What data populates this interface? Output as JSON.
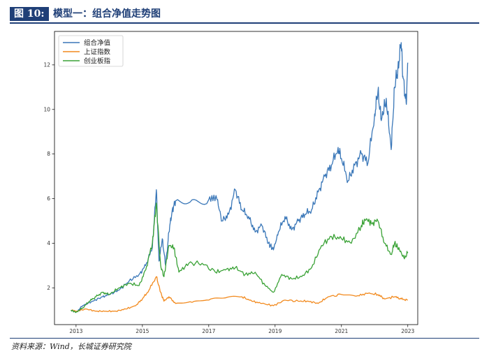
{
  "header": {
    "figure_label": "图 10:",
    "title": "模型一：组合净值走势图"
  },
  "footer": {
    "source": "资料来源：Wind，长城证券研究院"
  },
  "colors": {
    "brand": "#1f3f77",
    "series_portfolio": "#3a77b8",
    "series_shanghai": "#f28a1e",
    "series_chinext": "#3aa236"
  },
  "chart_data": {
    "type": "line",
    "title": "",
    "xlabel": "",
    "ylabel": "",
    "xlim": [
      2012.35,
      2023.3
    ],
    "ylim": [
      0.35,
      13.5
    ],
    "xticks": [
      2013,
      2015,
      2017,
      2019,
      2021,
      2023
    ],
    "yticks": [
      2,
      4,
      6,
      8,
      10,
      12
    ],
    "legend_position": "top-left",
    "grid": false,
    "series": [
      {
        "name": "组合净值",
        "color": "#3a77b8",
        "points": [
          [
            2012.85,
            1.0
          ],
          [
            2013.0,
            0.9
          ],
          [
            2013.2,
            1.2
          ],
          [
            2013.5,
            1.4
          ],
          [
            2013.8,
            1.6
          ],
          [
            2014.0,
            1.7
          ],
          [
            2014.3,
            1.9
          ],
          [
            2014.6,
            2.3
          ],
          [
            2014.9,
            2.6
          ],
          [
            2015.1,
            3.0
          ],
          [
            2015.3,
            3.8
          ],
          [
            2015.42,
            6.4
          ],
          [
            2015.5,
            3.2
          ],
          [
            2015.6,
            4.2
          ],
          [
            2015.7,
            3.0
          ],
          [
            2015.8,
            4.5
          ],
          [
            2015.9,
            5.5
          ],
          [
            2016.0,
            5.9
          ],
          [
            2016.5,
            5.95
          ],
          [
            2017.0,
            5.95
          ],
          [
            2017.25,
            5.95
          ],
          [
            2017.4,
            5.0
          ],
          [
            2017.6,
            5.3
          ],
          [
            2017.8,
            6.4
          ],
          [
            2018.0,
            5.5
          ],
          [
            2018.2,
            5.2
          ],
          [
            2018.4,
            4.5
          ],
          [
            2018.6,
            4.8
          ],
          [
            2018.8,
            4.0
          ],
          [
            2018.95,
            3.7
          ],
          [
            2019.1,
            4.5
          ],
          [
            2019.3,
            5.2
          ],
          [
            2019.5,
            4.6
          ],
          [
            2019.7,
            5.0
          ],
          [
            2019.9,
            5.3
          ],
          [
            2020.1,
            5.5
          ],
          [
            2020.3,
            6.3
          ],
          [
            2020.5,
            7.0
          ],
          [
            2020.7,
            7.5
          ],
          [
            2020.9,
            8.3
          ],
          [
            2021.0,
            7.8
          ],
          [
            2021.2,
            6.8
          ],
          [
            2021.4,
            7.5
          ],
          [
            2021.6,
            8.0
          ],
          [
            2021.8,
            7.6
          ],
          [
            2022.0,
            9.8
          ],
          [
            2022.1,
            10.8
          ],
          [
            2022.2,
            9.5
          ],
          [
            2022.35,
            10.5
          ],
          [
            2022.5,
            8.2
          ],
          [
            2022.6,
            11.0
          ],
          [
            2022.7,
            11.8
          ],
          [
            2022.8,
            13.0
          ],
          [
            2022.85,
            11.5
          ],
          [
            2022.95,
            10.3
          ],
          [
            2023.0,
            12.1
          ]
        ]
      },
      {
        "name": "上证指数",
        "color": "#f28a1e",
        "points": [
          [
            2012.85,
            1.0
          ],
          [
            2013.0,
            0.95
          ],
          [
            2013.3,
            1.05
          ],
          [
            2013.6,
            0.95
          ],
          [
            2013.9,
            0.95
          ],
          [
            2014.2,
            0.95
          ],
          [
            2014.5,
            1.05
          ],
          [
            2014.8,
            1.2
          ],
          [
            2015.0,
            1.5
          ],
          [
            2015.2,
            1.9
          ],
          [
            2015.42,
            2.5
          ],
          [
            2015.55,
            1.8
          ],
          [
            2015.65,
            1.4
          ],
          [
            2015.8,
            1.6
          ],
          [
            2016.0,
            1.3
          ],
          [
            2016.5,
            1.35
          ],
          [
            2017.0,
            1.45
          ],
          [
            2017.5,
            1.55
          ],
          [
            2018.0,
            1.6
          ],
          [
            2018.3,
            1.4
          ],
          [
            2018.6,
            1.3
          ],
          [
            2018.95,
            1.2
          ],
          [
            2019.3,
            1.45
          ],
          [
            2019.7,
            1.4
          ],
          [
            2020.0,
            1.4
          ],
          [
            2020.3,
            1.3
          ],
          [
            2020.6,
            1.6
          ],
          [
            2021.0,
            1.7
          ],
          [
            2021.5,
            1.65
          ],
          [
            2021.8,
            1.75
          ],
          [
            2022.1,
            1.7
          ],
          [
            2022.3,
            1.5
          ],
          [
            2022.6,
            1.6
          ],
          [
            2022.8,
            1.5
          ],
          [
            2023.0,
            1.45
          ]
        ]
      },
      {
        "name": "创业板指",
        "color": "#3aa236",
        "points": [
          [
            2012.85,
            1.0
          ],
          [
            2013.0,
            0.9
          ],
          [
            2013.2,
            1.1
          ],
          [
            2013.4,
            1.4
          ],
          [
            2013.6,
            1.6
          ],
          [
            2013.8,
            1.8
          ],
          [
            2014.0,
            1.7
          ],
          [
            2014.3,
            2.0
          ],
          [
            2014.6,
            2.2
          ],
          [
            2014.9,
            2.1
          ],
          [
            2015.1,
            2.8
          ],
          [
            2015.3,
            4.0
          ],
          [
            2015.42,
            5.8
          ],
          [
            2015.55,
            3.0
          ],
          [
            2015.65,
            2.5
          ],
          [
            2015.8,
            3.9
          ],
          [
            2015.95,
            3.8
          ],
          [
            2016.1,
            2.7
          ],
          [
            2016.4,
            3.1
          ],
          [
            2016.8,
            3.1
          ],
          [
            2017.2,
            2.7
          ],
          [
            2017.5,
            2.8
          ],
          [
            2017.8,
            2.9
          ],
          [
            2018.1,
            2.6
          ],
          [
            2018.4,
            2.7
          ],
          [
            2018.7,
            2.1
          ],
          [
            2018.95,
            1.8
          ],
          [
            2019.2,
            2.6
          ],
          [
            2019.5,
            2.4
          ],
          [
            2019.8,
            2.5
          ],
          [
            2020.1,
            2.9
          ],
          [
            2020.4,
            3.9
          ],
          [
            2020.7,
            4.3
          ],
          [
            2021.0,
            4.2
          ],
          [
            2021.3,
            4.0
          ],
          [
            2021.6,
            4.8
          ],
          [
            2021.75,
            5.1
          ],
          [
            2021.9,
            4.9
          ],
          [
            2022.1,
            5.0
          ],
          [
            2022.3,
            4.0
          ],
          [
            2022.5,
            3.5
          ],
          [
            2022.6,
            4.0
          ],
          [
            2022.75,
            3.7
          ],
          [
            2022.9,
            3.3
          ],
          [
            2023.0,
            3.6
          ]
        ]
      }
    ]
  }
}
